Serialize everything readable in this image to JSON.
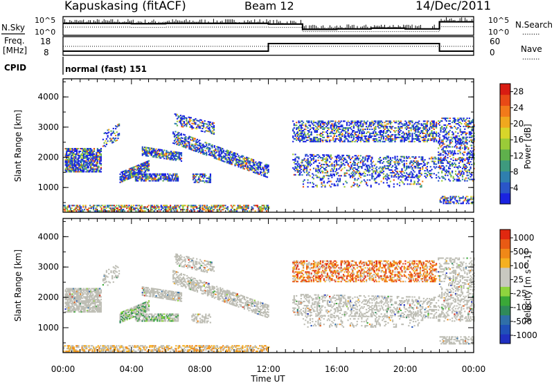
{
  "header": {
    "station": "Kapuskasing (fitACF)",
    "beam": "Beam 12",
    "date": "14/Dec/2011"
  },
  "strip_labels": {
    "nsky": "N.Sky",
    "nsearch": "N.Search",
    "freq_line1": "Freq.",
    "freq_line2": "[MHz]",
    "nave": "Nave",
    "cpid": "CPID",
    "noise_tick_top": "10^5",
    "noise_tick_bottom": "10^0",
    "freq_tick_top": "18",
    "freq_tick_bottom": "8",
    "nave_tick_top": "60",
    "nave_tick_bottom": "0",
    "legend_line": "........",
    "cpid_text": "normal (fast) 151"
  },
  "chart_data": [
    {
      "type": "line",
      "title": "N.Sky / N.Search",
      "x": [
        "00:00",
        "02:00",
        "04:00",
        "06:00",
        "08:00",
        "10:00",
        "12:00",
        "14:00",
        "16:00",
        "18:00",
        "20:00",
        "22:00",
        "24:00"
      ],
      "series": [
        {
          "name": "N.Sky",
          "values": [
            3.2,
            3.2,
            3.1,
            3.2,
            3.2,
            3.2,
            3.0,
            1.6,
            1.7,
            1.9,
            1.7,
            3.6,
            3.8
          ]
        },
        {
          "name": "N.Search",
          "values": [
            2.2,
            2.2,
            2.1,
            2.2,
            2.2,
            2.2,
            2.1,
            1.0,
            1.0,
            1.0,
            1.0,
            2.3,
            2.4
          ]
        }
      ],
      "ylim": [
        0,
        5
      ]
    },
    {
      "type": "line",
      "title": "Freq. / Nave",
      "x": [
        "00:00",
        "12:00",
        "12:00",
        "22:00",
        "22:00",
        "24:00"
      ],
      "series": [
        {
          "name": "Freq.",
          "values": [
            10.2,
            10.2,
            14.3,
            14.3,
            10.2,
            10.2
          ]
        },
        {
          "name": "Nave",
          "values": [
            29,
            29,
            29,
            29,
            29,
            29
          ]
        }
      ],
      "ylim": [
        8,
        18
      ]
    },
    {
      "type": "heatmap",
      "title": "Power",
      "xlabel": "Time UT",
      "ylabel": "Slant Range [km]",
      "x_ticks": [
        "00:00",
        "04:00",
        "08:00",
        "12:00",
        "16:00",
        "20:00",
        "00:00"
      ],
      "y_ticks": [
        1000,
        2000,
        3000,
        4000
      ],
      "xlim_hours": [
        0,
        24
      ],
      "ylim": [
        180,
        4600
      ],
      "colorbar": {
        "label": "Power [dB]",
        "ticks": [
          4,
          8,
          12,
          16,
          20,
          24,
          28
        ],
        "range": [
          0,
          30
        ]
      }
    },
    {
      "type": "heatmap",
      "title": "Velocity",
      "xlabel": "Time UT",
      "ylabel": "Slant Range [km]",
      "x_ticks": [
        "00:00",
        "04:00",
        "08:00",
        "12:00",
        "16:00",
        "20:00",
        "00:00"
      ],
      "y_ticks": [
        1000,
        2000,
        3000,
        4000
      ],
      "xlim_hours": [
        0,
        24
      ],
      "ylim": [
        180,
        4600
      ],
      "colorbar": {
        "label": "Velocity [m s^-1]",
        "ticks": [
          1000,
          500,
          100,
          25,
          -25,
          -100,
          -500,
          -1000
        ]
      }
    }
  ],
  "palettes": {
    "power": [
      "#1a23e0",
      "#2a56c8",
      "#2f7fae",
      "#3e9a7e",
      "#5fb04c",
      "#9acb38",
      "#d8d52a",
      "#f0a81e",
      "#f27a1a",
      "#e84a16",
      "#d81c12"
    ],
    "velocity": [
      "#2030c0",
      "#2050b8",
      "#2f6fa8",
      "#2f8a5a",
      "#3aa838",
      "#8ed43e",
      "#c8c8c0",
      "#c8c8c0",
      "#f5b020",
      "#f08818",
      "#e85a14",
      "#e02810"
    ],
    "ground_scatter": "#bdbdb4"
  }
}
